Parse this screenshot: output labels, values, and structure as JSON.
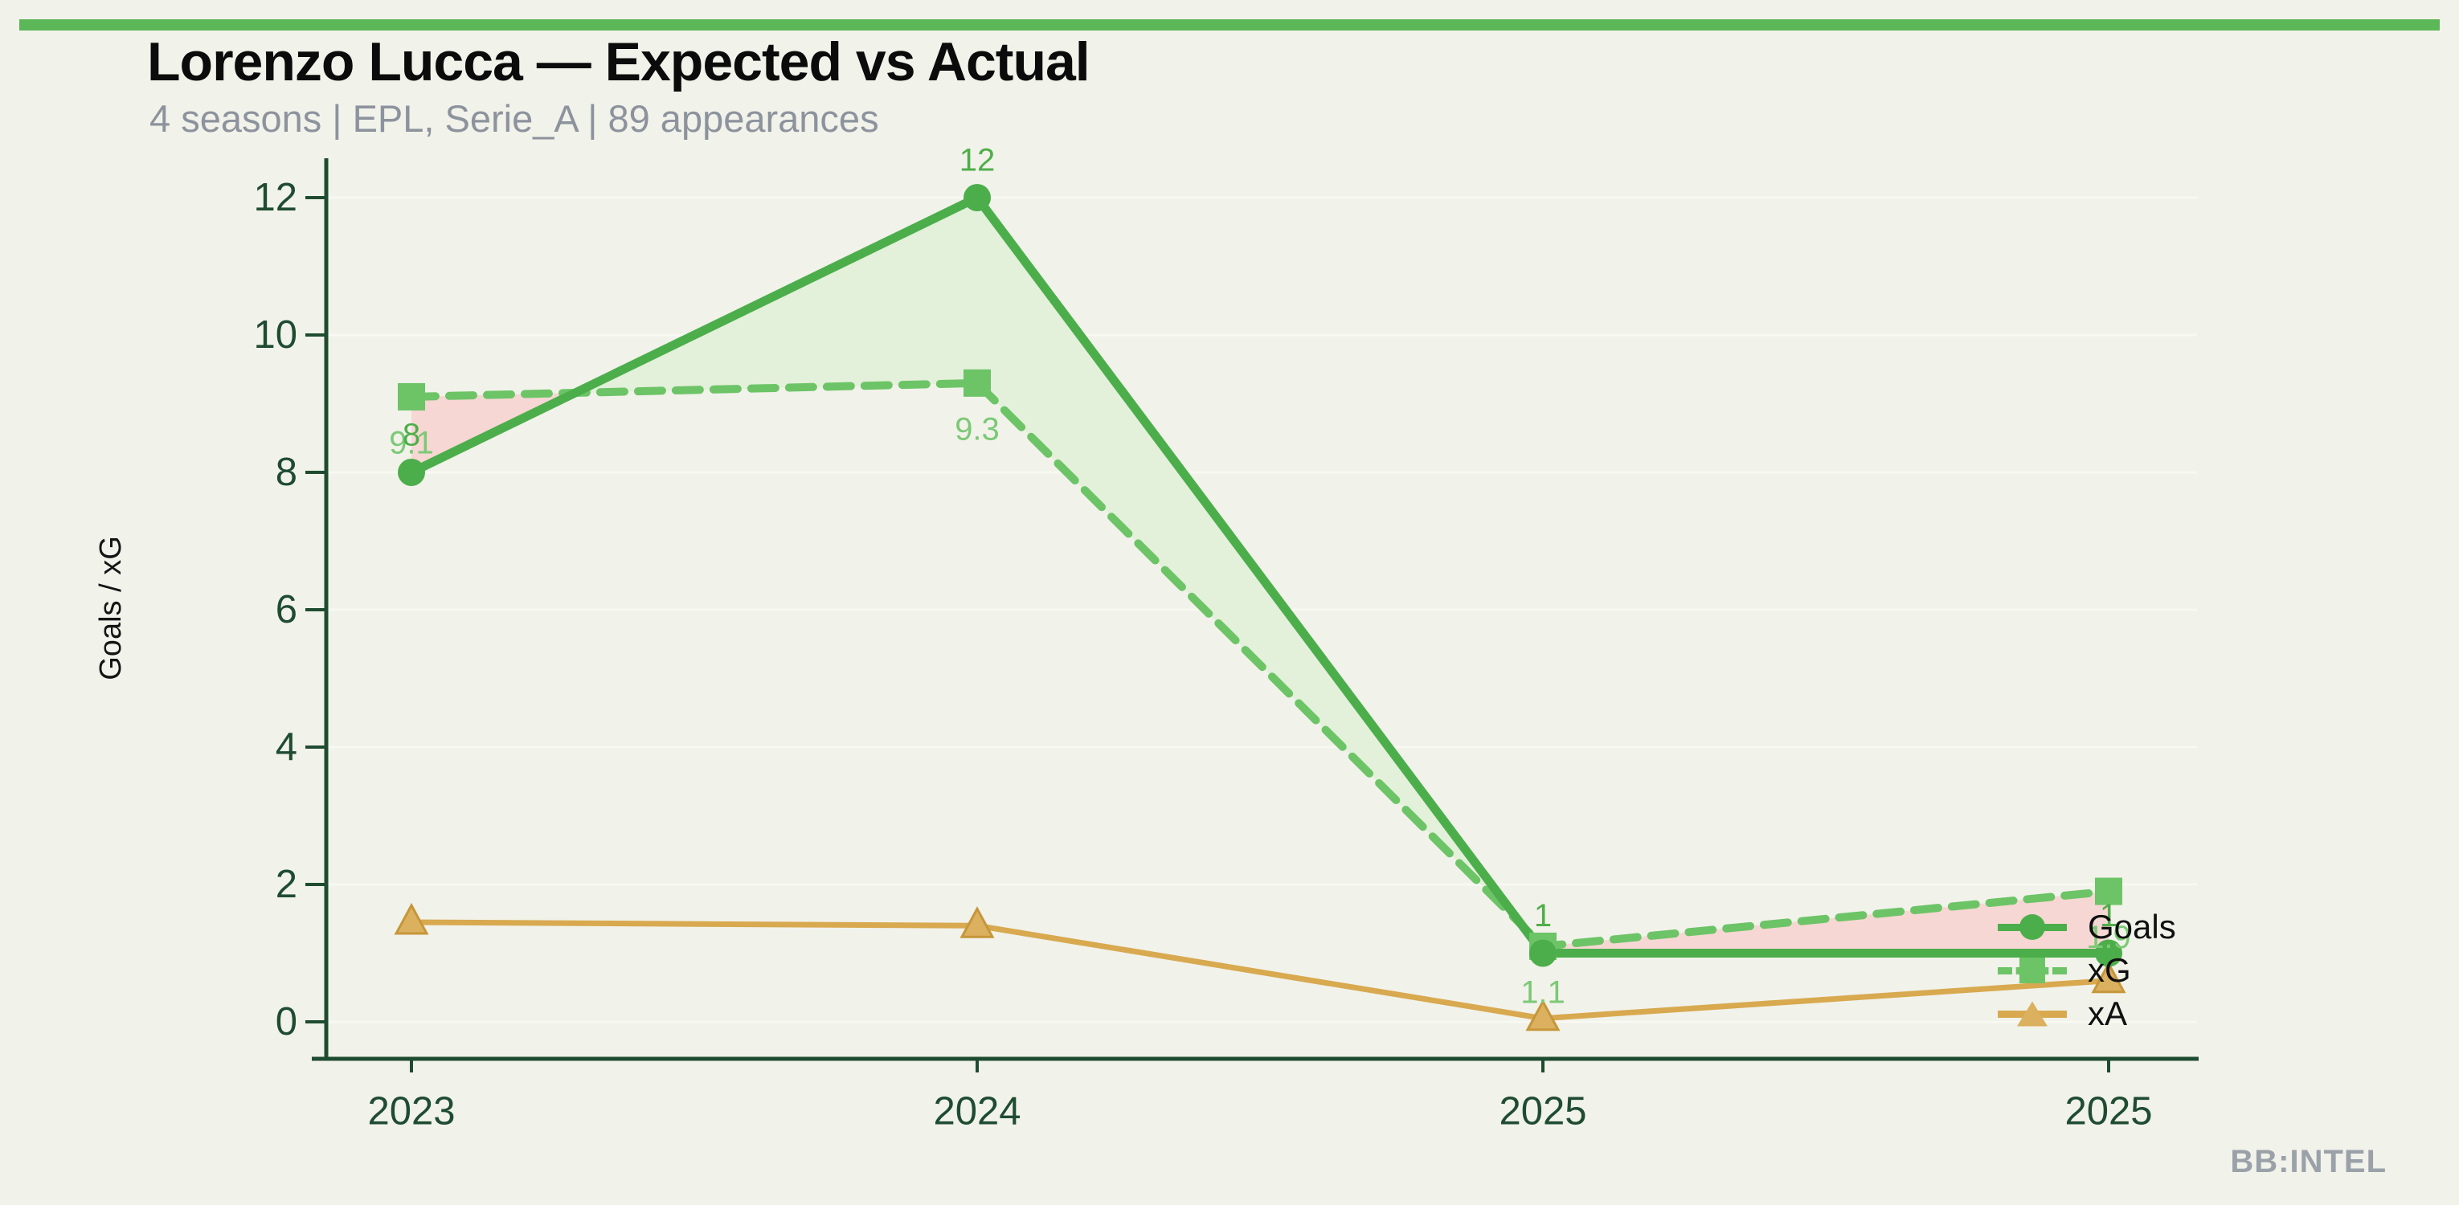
{
  "page": {
    "background_color": "#f1f2ea",
    "accent_bar_color": "#5bb757"
  },
  "header": {
    "title": "Lorenzo Lucca — Expected vs Actual",
    "subtitle": "4 seasons | EPL, Serie_A | 89 appearances"
  },
  "footer": {
    "watermark": "BB:INTEL"
  },
  "chart_data": {
    "type": "line",
    "title": "Lorenzo Lucca — Expected vs Actual",
    "subtitle": "4 seasons | EPL, Serie_A | 89 appearances",
    "categories": [
      "2023",
      "2024",
      "2025",
      "2025"
    ],
    "xlabel": "",
    "ylabel": "Goals / xG",
    "ylim": [
      0,
      12
    ],
    "yticks": [
      0,
      2,
      4,
      6,
      8,
      10,
      12
    ],
    "grid": true,
    "legend_position": "right",
    "axis_color": "#1f4c31",
    "tick_label_color": "#1f4c31",
    "grid_color": "#f8f9f2",
    "ylabel_color": "#141414",
    "series": [
      {
        "name": "Goals",
        "marker": "circle",
        "line_style": "solid",
        "color": "#4cae4b",
        "label_color": "#4fae4a",
        "values": [
          8,
          12,
          1,
          1
        ],
        "point_labels": [
          "8",
          "12",
          "1",
          "1"
        ],
        "label_placement": "above"
      },
      {
        "name": "xG",
        "marker": "square",
        "line_style": "dashed",
        "color": "#6cc466",
        "label_color": "#7cc976",
        "values": [
          9.1,
          9.3,
          1.1,
          1.9
        ],
        "point_labels": [
          "9.1",
          "9.3",
          "1.1",
          "1.9"
        ],
        "label_placement": "below"
      },
      {
        "name": "xA",
        "marker": "triangle",
        "line_style": "solid",
        "color": "#d8a94f",
        "marker_fill": "#dbb05f",
        "marker_stroke": "#c6963a",
        "label_color": "#d8a94f",
        "values": [
          1.45,
          1.4,
          0.05,
          0.6
        ],
        "point_labels": [],
        "label_placement": "none"
      }
    ],
    "fill_between": {
      "series_a": "Goals",
      "series_b": "xG",
      "a_above_color": "#e3f0da",
      "b_above_color": "#f6d7d3"
    }
  }
}
